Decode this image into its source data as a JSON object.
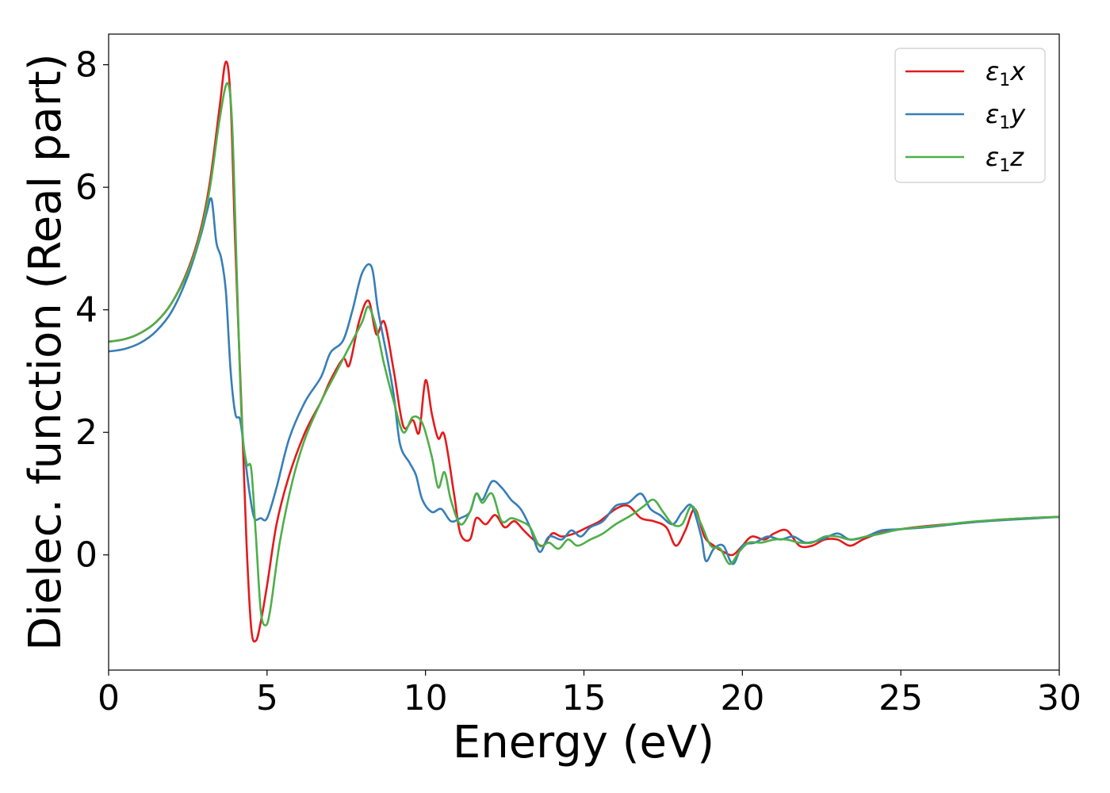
{
  "chart_data": {
    "type": "line",
    "title": "",
    "xlabel": "Energy (eV)",
    "ylabel": "Dielec. function (Real part)",
    "xlim": [
      0,
      30
    ],
    "ylim": [
      -1.88,
      8.5
    ],
    "xticks": [
      0,
      5,
      10,
      15,
      20,
      25,
      30
    ],
    "yticks": [
      0,
      2,
      4,
      6,
      8
    ],
    "grid": false,
    "legend_position": "top-right",
    "series": [
      {
        "name": "ε₁x",
        "label_base": "ε",
        "label_sub": "1",
        "label_var": "x",
        "color": "#e41a1c",
        "points": [
          [
            0,
            3.48
          ],
          [
            0.5,
            3.52
          ],
          [
            1,
            3.62
          ],
          [
            1.5,
            3.8
          ],
          [
            2,
            4.12
          ],
          [
            2.5,
            4.65
          ],
          [
            2.9,
            5.3
          ],
          [
            3.2,
            6.1
          ],
          [
            3.5,
            7.3
          ],
          [
            3.7,
            8.05
          ],
          [
            3.85,
            7.4
          ],
          [
            4.0,
            5.0
          ],
          [
            4.2,
            2.3
          ],
          [
            4.35,
            0.2
          ],
          [
            4.5,
            -1.2
          ],
          [
            4.65,
            -1.4
          ],
          [
            4.8,
            -1.1
          ],
          [
            5.0,
            -0.5
          ],
          [
            5.3,
            0.5
          ],
          [
            5.7,
            1.3
          ],
          [
            6.2,
            2.0
          ],
          [
            6.7,
            2.5
          ],
          [
            7.0,
            2.85
          ],
          [
            7.4,
            3.2
          ],
          [
            7.6,
            3.1
          ],
          [
            7.9,
            3.8
          ],
          [
            8.2,
            4.15
          ],
          [
            8.45,
            3.6
          ],
          [
            8.7,
            3.8
          ],
          [
            9.0,
            3.0
          ],
          [
            9.3,
            2.1
          ],
          [
            9.6,
            2.2
          ],
          [
            9.8,
            2.0
          ],
          [
            10.0,
            2.85
          ],
          [
            10.2,
            2.3
          ],
          [
            10.4,
            1.9
          ],
          [
            10.6,
            1.95
          ],
          [
            10.9,
            1.0
          ],
          [
            11.1,
            0.35
          ],
          [
            11.4,
            0.25
          ],
          [
            11.6,
            0.6
          ],
          [
            11.9,
            0.5
          ],
          [
            12.2,
            0.65
          ],
          [
            12.5,
            0.45
          ],
          [
            12.8,
            0.55
          ],
          [
            13.1,
            0.4
          ],
          [
            13.4,
            0.25
          ],
          [
            13.7,
            0.15
          ],
          [
            14.0,
            0.35
          ],
          [
            14.3,
            0.3
          ],
          [
            14.7,
            0.35
          ],
          [
            15.1,
            0.45
          ],
          [
            15.5,
            0.55
          ],
          [
            16.0,
            0.75
          ],
          [
            16.4,
            0.8
          ],
          [
            16.8,
            0.6
          ],
          [
            17.2,
            0.55
          ],
          [
            17.6,
            0.45
          ],
          [
            17.9,
            0.15
          ],
          [
            18.2,
            0.4
          ],
          [
            18.5,
            0.75
          ],
          [
            18.8,
            0.3
          ],
          [
            19.1,
            0.15
          ],
          [
            19.4,
            0.05
          ],
          [
            19.7,
            0.0
          ],
          [
            20.0,
            0.15
          ],
          [
            20.3,
            0.3
          ],
          [
            20.7,
            0.25
          ],
          [
            21.0,
            0.35
          ],
          [
            21.4,
            0.4
          ],
          [
            21.8,
            0.15
          ],
          [
            22.2,
            0.15
          ],
          [
            22.6,
            0.25
          ],
          [
            23.0,
            0.25
          ],
          [
            23.4,
            0.15
          ],
          [
            23.8,
            0.25
          ],
          [
            24.3,
            0.35
          ],
          [
            25.0,
            0.42
          ],
          [
            26.0,
            0.48
          ],
          [
            27.0,
            0.52
          ],
          [
            28.0,
            0.57
          ],
          [
            29.0,
            0.6
          ],
          [
            30.0,
            0.62
          ]
        ]
      },
      {
        "name": "ε₁y",
        "label_base": "ε",
        "label_sub": "1",
        "label_var": "y",
        "color": "#377eb8",
        "points": [
          [
            0,
            3.32
          ],
          [
            0.5,
            3.36
          ],
          [
            1,
            3.46
          ],
          [
            1.5,
            3.65
          ],
          [
            2,
            3.98
          ],
          [
            2.5,
            4.55
          ],
          [
            2.9,
            5.2
          ],
          [
            3.1,
            5.6
          ],
          [
            3.25,
            5.8
          ],
          [
            3.4,
            5.1
          ],
          [
            3.55,
            4.85
          ],
          [
            3.7,
            4.3
          ],
          [
            3.85,
            3.0
          ],
          [
            4.0,
            2.3
          ],
          [
            4.15,
            2.2
          ],
          [
            4.3,
            1.6
          ],
          [
            4.45,
            1.0
          ],
          [
            4.6,
            0.6
          ],
          [
            4.8,
            0.6
          ],
          [
            5.0,
            0.6
          ],
          [
            5.3,
            1.1
          ],
          [
            5.7,
            1.9
          ],
          [
            6.2,
            2.5
          ],
          [
            6.7,
            2.9
          ],
          [
            7.0,
            3.3
          ],
          [
            7.4,
            3.5
          ],
          [
            7.7,
            4.0
          ],
          [
            8.0,
            4.6
          ],
          [
            8.3,
            4.7
          ],
          [
            8.5,
            4.0
          ],
          [
            8.8,
            3.2
          ],
          [
            9.0,
            2.6
          ],
          [
            9.2,
            1.8
          ],
          [
            9.5,
            1.5
          ],
          [
            9.7,
            1.3
          ],
          [
            9.9,
            0.9
          ],
          [
            10.2,
            0.7
          ],
          [
            10.5,
            0.75
          ],
          [
            10.8,
            0.55
          ],
          [
            11.1,
            0.6
          ],
          [
            11.4,
            0.7
          ],
          [
            11.6,
            1.0
          ],
          [
            11.8,
            0.9
          ],
          [
            12.1,
            1.2
          ],
          [
            12.4,
            1.1
          ],
          [
            12.7,
            0.9
          ],
          [
            13.0,
            0.75
          ],
          [
            13.3,
            0.45
          ],
          [
            13.6,
            0.05
          ],
          [
            13.9,
            0.3
          ],
          [
            14.3,
            0.25
          ],
          [
            14.6,
            0.4
          ],
          [
            14.9,
            0.3
          ],
          [
            15.2,
            0.45
          ],
          [
            15.6,
            0.55
          ],
          [
            16.0,
            0.8
          ],
          [
            16.4,
            0.85
          ],
          [
            16.8,
            1.0
          ],
          [
            17.1,
            0.75
          ],
          [
            17.4,
            0.65
          ],
          [
            17.8,
            0.5
          ],
          [
            18.1,
            0.7
          ],
          [
            18.4,
            0.8
          ],
          [
            18.7,
            0.3
          ],
          [
            18.85,
            -0.1
          ],
          [
            19.1,
            0.1
          ],
          [
            19.4,
            0.15
          ],
          [
            19.7,
            -0.15
          ],
          [
            20.0,
            0.15
          ],
          [
            20.4,
            0.2
          ],
          [
            20.8,
            0.3
          ],
          [
            21.2,
            0.25
          ],
          [
            21.6,
            0.3
          ],
          [
            22.0,
            0.2
          ],
          [
            22.5,
            0.25
          ],
          [
            23.0,
            0.35
          ],
          [
            23.4,
            0.25
          ],
          [
            23.9,
            0.3
          ],
          [
            24.4,
            0.4
          ],
          [
            25.0,
            0.42
          ],
          [
            26.0,
            0.46
          ],
          [
            27.0,
            0.52
          ],
          [
            28.0,
            0.56
          ],
          [
            29.0,
            0.59
          ],
          [
            30.0,
            0.62
          ]
        ]
      },
      {
        "name": "ε₁z",
        "label_base": "ε",
        "label_sub": "1",
        "label_var": "z",
        "color": "#4daf4a",
        "points": [
          [
            0,
            3.48
          ],
          [
            0.5,
            3.52
          ],
          [
            1,
            3.62
          ],
          [
            1.5,
            3.8
          ],
          [
            2,
            4.12
          ],
          [
            2.5,
            4.62
          ],
          [
            2.9,
            5.25
          ],
          [
            3.2,
            6.0
          ],
          [
            3.5,
            7.1
          ],
          [
            3.75,
            7.7
          ],
          [
            3.9,
            7.0
          ],
          [
            4.05,
            4.5
          ],
          [
            4.2,
            2.2
          ],
          [
            4.35,
            1.5
          ],
          [
            4.5,
            1.4
          ],
          [
            4.65,
            0.3
          ],
          [
            4.8,
            -0.9
          ],
          [
            4.95,
            -1.15
          ],
          [
            5.1,
            -0.9
          ],
          [
            5.4,
            0.2
          ],
          [
            5.8,
            1.2
          ],
          [
            6.2,
            1.9
          ],
          [
            6.7,
            2.5
          ],
          [
            7.1,
            2.9
          ],
          [
            7.4,
            3.2
          ],
          [
            7.7,
            3.5
          ],
          [
            8.0,
            3.8
          ],
          [
            8.2,
            4.05
          ],
          [
            8.45,
            3.7
          ],
          [
            8.7,
            3.1
          ],
          [
            9.0,
            2.5
          ],
          [
            9.3,
            2.0
          ],
          [
            9.6,
            2.25
          ],
          [
            9.9,
            2.15
          ],
          [
            10.2,
            1.6
          ],
          [
            10.4,
            1.1
          ],
          [
            10.6,
            1.35
          ],
          [
            10.8,
            0.9
          ],
          [
            11.1,
            0.5
          ],
          [
            11.4,
            0.7
          ],
          [
            11.6,
            1.0
          ],
          [
            11.8,
            0.85
          ],
          [
            12.1,
            1.0
          ],
          [
            12.4,
            0.55
          ],
          [
            12.7,
            0.6
          ],
          [
            13.0,
            0.55
          ],
          [
            13.3,
            0.45
          ],
          [
            13.6,
            0.15
          ],
          [
            13.9,
            0.2
          ],
          [
            14.2,
            0.1
          ],
          [
            14.5,
            0.25
          ],
          [
            14.8,
            0.15
          ],
          [
            15.2,
            0.25
          ],
          [
            15.6,
            0.35
          ],
          [
            16.0,
            0.5
          ],
          [
            16.5,
            0.65
          ],
          [
            16.9,
            0.8
          ],
          [
            17.2,
            0.9
          ],
          [
            17.5,
            0.7
          ],
          [
            17.8,
            0.5
          ],
          [
            18.1,
            0.5
          ],
          [
            18.4,
            0.8
          ],
          [
            18.7,
            0.5
          ],
          [
            19.0,
            0.15
          ],
          [
            19.3,
            0.1
          ],
          [
            19.6,
            -0.15
          ],
          [
            19.9,
            0.05
          ],
          [
            20.2,
            0.2
          ],
          [
            20.6,
            0.2
          ],
          [
            21.0,
            0.25
          ],
          [
            21.4,
            0.25
          ],
          [
            21.8,
            0.2
          ],
          [
            22.2,
            0.2
          ],
          [
            22.6,
            0.3
          ],
          [
            23.0,
            0.3
          ],
          [
            23.4,
            0.25
          ],
          [
            23.9,
            0.3
          ],
          [
            24.4,
            0.35
          ],
          [
            25.0,
            0.42
          ],
          [
            26.0,
            0.47
          ],
          [
            27.0,
            0.53
          ],
          [
            28.0,
            0.57
          ],
          [
            29.0,
            0.6
          ],
          [
            30.0,
            0.62
          ]
        ]
      }
    ]
  }
}
